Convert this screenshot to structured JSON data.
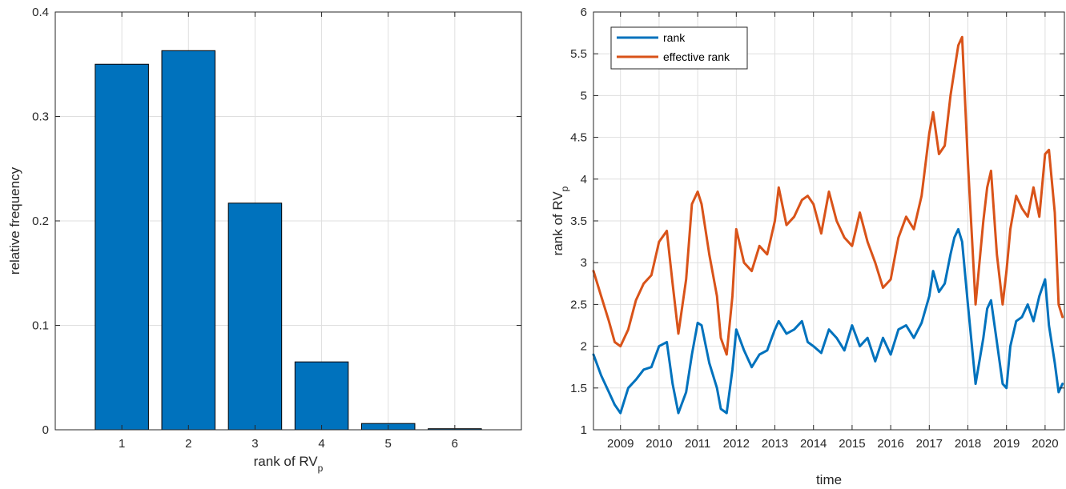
{
  "chart_data": [
    {
      "type": "bar",
      "title": "",
      "xlabel": "rank of RV",
      "xlabel_subscript": "p",
      "ylabel": "relative frequency",
      "categories": [
        "1",
        "2",
        "3",
        "4",
        "5",
        "6"
      ],
      "values": [
        0.35,
        0.363,
        0.217,
        0.065,
        0.006,
        0.001
      ],
      "xlim": [
        0,
        7
      ],
      "ylim": [
        0,
        0.4
      ],
      "yticks": [
        "0",
        "0.1",
        "0.2",
        "0.3",
        "0.4"
      ],
      "grid": true,
      "colors": {
        "bar": "#0072BD",
        "edge": "#000000"
      }
    },
    {
      "type": "line",
      "title": "",
      "xlabel": "time",
      "ylabel": "rank of RV",
      "ylabel_subscript": "p",
      "xlim": [
        2008.3,
        2020.5
      ],
      "ylim": [
        1,
        6
      ],
      "xticks": [
        "2009",
        "2010",
        "2011",
        "2012",
        "2013",
        "2014",
        "2015",
        "2016",
        "2017",
        "2018",
        "2019",
        "2020"
      ],
      "yticks": [
        "1",
        "1.5",
        "2",
        "2.5",
        "3",
        "3.5",
        "4",
        "4.5",
        "5",
        "5.5",
        "6"
      ],
      "grid": true,
      "legend_position": "top-left",
      "x": [
        2008.3,
        2008.5,
        2008.7,
        2008.85,
        2009.0,
        2009.2,
        2009.4,
        2009.6,
        2009.8,
        2010.0,
        2010.2,
        2010.35,
        2010.5,
        2010.7,
        2010.85,
        2011.0,
        2011.1,
        2011.3,
        2011.5,
        2011.6,
        2011.75,
        2011.9,
        2012.0,
        2012.2,
        2012.4,
        2012.6,
        2012.8,
        2013.0,
        2013.1,
        2013.3,
        2013.5,
        2013.7,
        2013.85,
        2014.0,
        2014.2,
        2014.4,
        2014.6,
        2014.8,
        2015.0,
        2015.2,
        2015.4,
        2015.6,
        2015.8,
        2016.0,
        2016.2,
        2016.4,
        2016.6,
        2016.8,
        2017.0,
        2017.1,
        2017.25,
        2017.4,
        2017.55,
        2017.65,
        2017.75,
        2017.85,
        2018.0,
        2018.2,
        2018.4,
        2018.5,
        2018.6,
        2018.75,
        2018.9,
        2019.0,
        2019.1,
        2019.25,
        2019.4,
        2019.55,
        2019.7,
        2019.85,
        2020.0,
        2020.1,
        2020.25,
        2020.35,
        2020.45
      ],
      "series": [
        {
          "name": "rank",
          "color": "#0072BD",
          "values": [
            1.9,
            1.65,
            1.45,
            1.3,
            1.2,
            1.5,
            1.6,
            1.72,
            1.75,
            2.0,
            2.05,
            1.55,
            1.2,
            1.45,
            1.9,
            2.28,
            2.25,
            1.8,
            1.5,
            1.25,
            1.2,
            1.72,
            2.2,
            1.95,
            1.75,
            1.9,
            1.95,
            2.2,
            2.3,
            2.15,
            2.2,
            2.3,
            2.05,
            2.0,
            1.92,
            2.2,
            2.1,
            1.95,
            2.25,
            2.0,
            2.1,
            1.82,
            2.1,
            1.9,
            2.2,
            2.25,
            2.1,
            2.28,
            2.6,
            2.9,
            2.65,
            2.75,
            3.1,
            3.3,
            3.4,
            3.25,
            2.5,
            1.55,
            2.1,
            2.45,
            2.55,
            2.05,
            1.55,
            1.5,
            2.0,
            2.3,
            2.35,
            2.5,
            2.3,
            2.6,
            2.8,
            2.25,
            1.8,
            1.45,
            1.55
          ]
        },
        {
          "name": "effective rank",
          "color": "#D95319",
          "values": [
            2.9,
            2.6,
            2.3,
            2.05,
            2.0,
            2.2,
            2.55,
            2.75,
            2.85,
            3.25,
            3.38,
            2.75,
            2.15,
            2.8,
            3.7,
            3.85,
            3.7,
            3.1,
            2.6,
            2.1,
            1.9,
            2.6,
            3.4,
            3.0,
            2.9,
            3.2,
            3.1,
            3.5,
            3.9,
            3.45,
            3.55,
            3.75,
            3.8,
            3.7,
            3.35,
            3.85,
            3.5,
            3.3,
            3.2,
            3.6,
            3.25,
            3.0,
            2.7,
            2.8,
            3.3,
            3.55,
            3.4,
            3.8,
            4.55,
            4.8,
            4.3,
            4.4,
            5.0,
            5.3,
            5.6,
            5.7,
            4.2,
            2.5,
            3.5,
            3.9,
            4.1,
            3.1,
            2.5,
            2.9,
            3.4,
            3.8,
            3.65,
            3.55,
            3.9,
            3.55,
            4.3,
            4.35,
            3.6,
            2.5,
            2.35
          ]
        }
      ],
      "legend": [
        "rank",
        "effective rank"
      ]
    }
  ]
}
